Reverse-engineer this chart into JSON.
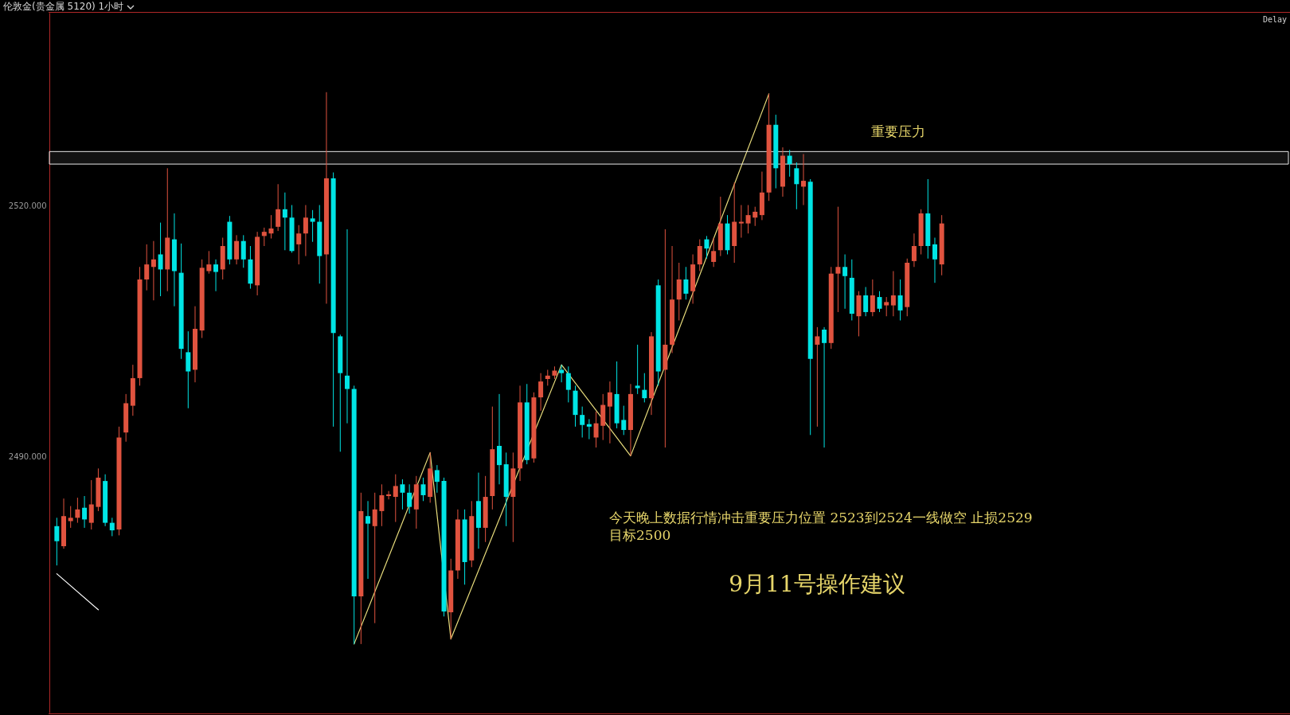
{
  "chart_data": {
    "type": "candlestick",
    "title": "伦敦金(贵金属 5120)  1小时",
    "categories": [
      null,
      null,
      null,
      null,
      null,
      null,
      null,
      null,
      null,
      null,
      null,
      null,
      null,
      null,
      null,
      null,
      null,
      null,
      null,
      null,
      null,
      null,
      null,
      null,
      null,
      null,
      null,
      null,
      null,
      null,
      null,
      null,
      null,
      null,
      null,
      null,
      null,
      null,
      null,
      null,
      null,
      null,
      null,
      null,
      null,
      null,
      null,
      null,
      null,
      null,
      null,
      null,
      null,
      null,
      null,
      null,
      null,
      null,
      null,
      null,
      null,
      null,
      null,
      null,
      null,
      null,
      null,
      null,
      null,
      null,
      null,
      null,
      null,
      null,
      null,
      null,
      null,
      null,
      null,
      null,
      null,
      null,
      null,
      null,
      null,
      null,
      null,
      null,
      null,
      null,
      null,
      null,
      null,
      null,
      null,
      null,
      null,
      null,
      null,
      null,
      null,
      null,
      null,
      null,
      null,
      null,
      null,
      null,
      null,
      null,
      null,
      null,
      null,
      null,
      null,
      null,
      null,
      null,
      null,
      null,
      null,
      null,
      null,
      null,
      null,
      null,
      null,
      null,
      null
    ],
    "ohlc": [
      [
        2481.7,
        2482.7,
        2477.0,
        2479.9
      ],
      [
        2479.3,
        2485.0,
        2479.0,
        2482.9
      ],
      [
        2482.3,
        2484.1,
        2481.5,
        2482.7
      ],
      [
        2482.7,
        2485.1,
        2482.1,
        2483.7
      ],
      [
        2483.9,
        2485.3,
        2481.5,
        2482.5
      ],
      [
        2482.1,
        2487.2,
        2481.3,
        2484.3
      ],
      [
        2484.0,
        2488.6,
        2483.5,
        2487.5
      ],
      [
        2487.1,
        2487.9,
        2481.7,
        2482.1
      ],
      [
        2482.1,
        2482.7,
        2480.5,
        2481.2
      ],
      [
        2481.3,
        2493.6,
        2480.6,
        2492.3
      ],
      [
        2492.9,
        2497.5,
        2491.8,
        2496.4
      ],
      [
        2496.1,
        2501.0,
        2494.9,
        2499.4
      ],
      [
        2499.4,
        2512.7,
        2498.5,
        2511.2
      ],
      [
        2511.2,
        2515.4,
        2509.9,
        2513.0
      ],
      [
        2512.7,
        2515.8,
        2508.7,
        2513.6
      ],
      [
        2514.2,
        2518.0,
        2509.2,
        2512.4
      ],
      [
        2512.4,
        2524.5,
        2509.8,
        2516.2
      ],
      [
        2516.0,
        2519.1,
        2508.0,
        2512.2
      ],
      [
        2512.0,
        2515.5,
        2501.7,
        2502.9
      ],
      [
        2502.5,
        2505.0,
        2495.8,
        2500.2
      ],
      [
        2500.4,
        2508.0,
        2498.9,
        2505.3
      ],
      [
        2505.1,
        2513.6,
        2504.2,
        2512.6
      ],
      [
        2512.2,
        2514.6,
        2511.9,
        2513.0
      ],
      [
        2513.0,
        2513.6,
        2509.8,
        2512.1
      ],
      [
        2512.4,
        2516.2,
        2511.2,
        2515.2
      ],
      [
        2518.1,
        2518.8,
        2513.0,
        2513.6
      ],
      [
        2513.6,
        2516.5,
        2513.0,
        2515.8
      ],
      [
        2515.8,
        2516.5,
        2512.6,
        2513.6
      ],
      [
        2513.6,
        2515.2,
        2510.1,
        2510.7
      ],
      [
        2510.5,
        2516.9,
        2509.3,
        2516.3
      ],
      [
        2516.4,
        2517.4,
        2515.2,
        2516.9
      ],
      [
        2516.7,
        2518.9,
        2516.1,
        2517.3
      ],
      [
        2517.5,
        2522.6,
        2517.0,
        2519.6
      ],
      [
        2519.6,
        2521.6,
        2514.7,
        2518.6
      ],
      [
        2518.6,
        2520.1,
        2514.4,
        2514.6
      ],
      [
        2515.4,
        2517.7,
        2513.0,
        2516.7
      ],
      [
        2516.7,
        2520.1,
        2514.0,
        2518.6
      ],
      [
        2518.5,
        2519.5,
        2515.7,
        2518.1
      ],
      [
        2518.1,
        2520.1,
        2510.7,
        2514.0
      ],
      [
        2514.2,
        2533.6,
        2508.3,
        2523.3
      ],
      [
        2523.3,
        2524.0,
        2493.6,
        2504.8
      ],
      [
        2504.4,
        2504.6,
        2490.6,
        2500.0
      ],
      [
        2499.7,
        2517.2,
        2494.0,
        2498.1
      ],
      [
        2498.1,
        2498.5,
        2467.6,
        2473.3
      ],
      [
        2473.3,
        2485.7,
        2467.6,
        2483.5
      ],
      [
        2482.9,
        2484.7,
        2475.4,
        2482.0
      ],
      [
        2481.7,
        2485.7,
        2470.1,
        2483.7
      ],
      [
        2483.5,
        2486.7,
        2481.7,
        2485.4
      ],
      [
        2485.3,
        2485.9,
        2484.9,
        2485.5
      ],
      [
        2485.2,
        2487.9,
        2482.2,
        2486.5
      ],
      [
        2486.7,
        2487.3,
        2483.7,
        2485.7
      ],
      [
        2485.7,
        2486.7,
        2483.2,
        2484.0
      ],
      [
        2483.7,
        2487.7,
        2481.4,
        2486.7
      ],
      [
        2486.7,
        2487.5,
        2484.7,
        2485.4
      ],
      [
        2485.2,
        2490.5,
        2484.5,
        2488.6
      ],
      [
        2488.4,
        2489.0,
        2485.7,
        2487.0
      ],
      [
        2487.1,
        2487.5,
        2470.9,
        2471.5
      ],
      [
        2471.4,
        2477.8,
        2468.2,
        2476.4
      ],
      [
        2476.4,
        2483.7,
        2475.4,
        2482.5
      ],
      [
        2482.5,
        2483.7,
        2474.7,
        2477.4
      ],
      [
        2477.6,
        2484.7,
        2476.8,
        2482.9
      ],
      [
        2484.7,
        2488.1,
        2479.0,
        2481.5
      ],
      [
        2481.5,
        2487.7,
        2479.8,
        2485.2
      ],
      [
        2485.3,
        2496.0,
        2483.7,
        2490.9
      ],
      [
        2491.3,
        2497.5,
        2486.7,
        2489.0
      ],
      [
        2489.1,
        2490.5,
        2481.7,
        2485.2
      ],
      [
        2485.2,
        2490.5,
        2479.8,
        2488.6
      ],
      [
        2488.6,
        2498.5,
        2487.1,
        2496.5
      ],
      [
        2496.5,
        2498.7,
        2489.1,
        2489.6
      ],
      [
        2489.8,
        2497.7,
        2489.3,
        2497.1
      ],
      [
        2497.1,
        2500.0,
        2495.5,
        2499.0
      ],
      [
        2499.3,
        2500.4,
        2498.5,
        2499.7
      ],
      [
        2499.7,
        2500.8,
        2499.3,
        2500.3
      ],
      [
        2500.4,
        2501.0,
        2498.9,
        2500.0
      ],
      [
        2500.0,
        2500.8,
        2496.5,
        2498.0
      ],
      [
        2497.9,
        2498.5,
        2493.6,
        2495.0
      ],
      [
        2495.0,
        2496.0,
        2492.3,
        2493.8
      ],
      [
        2493.9,
        2494.5,
        2492.1,
        2493.6
      ],
      [
        2492.3,
        2495.4,
        2491.1,
        2494.0
      ],
      [
        2493.7,
        2497.5,
        2492.0,
        2496.2
      ],
      [
        2496.0,
        2499.0,
        2491.6,
        2497.7
      ],
      [
        2497.5,
        2501.4,
        2493.4,
        2494.0
      ],
      [
        2494.4,
        2496.1,
        2492.6,
        2493.2
      ],
      [
        2493.2,
        2498.7,
        2490.1,
        2497.5
      ],
      [
        2498.5,
        2503.4,
        2497.5,
        2498.2
      ],
      [
        2498.0,
        2500.0,
        2496.5,
        2497.0
      ],
      [
        2497.0,
        2504.9,
        2495.0,
        2504.4
      ],
      [
        2510.5,
        2511.2,
        2498.5,
        2500.2
      ],
      [
        2500.4,
        2517.2,
        2491.1,
        2503.4
      ],
      [
        2503.4,
        2515.2,
        2502.4,
        2508.8
      ],
      [
        2508.8,
        2513.2,
        2506.3,
        2511.2
      ],
      [
        2511.2,
        2512.7,
        2508.8,
        2509.5
      ],
      [
        2509.8,
        2514.2,
        2508.3,
        2513.0
      ],
      [
        2513.0,
        2516.0,
        2512.2,
        2515.2
      ],
      [
        2516.0,
        2516.4,
        2513.7,
        2514.9
      ],
      [
        2513.3,
        2516.2,
        2512.7,
        2514.6
      ],
      [
        2514.7,
        2521.1,
        2514.0,
        2517.9
      ],
      [
        2517.9,
        2518.9,
        2514.2,
        2514.7
      ],
      [
        2515.2,
        2522.8,
        2513.2,
        2518.1
      ],
      [
        2517.9,
        2520.1,
        2516.2,
        2518.1
      ],
      [
        2517.9,
        2520.1,
        2516.7,
        2518.9
      ],
      [
        2518.6,
        2519.9,
        2517.6,
        2519.3
      ],
      [
        2518.9,
        2524.1,
        2518.3,
        2521.6
      ],
      [
        2521.6,
        2533.4,
        2520.6,
        2529.7
      ],
      [
        2529.7,
        2530.9,
        2522.1,
        2524.5
      ],
      [
        2522.3,
        2527.0,
        2521.1,
        2526.0
      ],
      [
        2526.0,
        2526.7,
        2523.5,
        2525.0
      ],
      [
        2524.5,
        2525.2,
        2519.6,
        2522.6
      ],
      [
        2522.3,
        2526.2,
        2520.1,
        2523.0
      ],
      [
        2522.9,
        2523.2,
        2492.6,
        2501.7
      ],
      [
        2503.4,
        2505.5,
        2493.6,
        2504.4
      ],
      [
        2505.2,
        2505.5,
        2491.1,
        2503.6
      ],
      [
        2503.6,
        2512.7,
        2502.9,
        2511.9
      ],
      [
        2511.9,
        2519.9,
        2507.3,
        2512.7
      ],
      [
        2512.7,
        2514.2,
        2507.7,
        2511.6
      ],
      [
        2511.4,
        2513.6,
        2506.3,
        2507.1
      ],
      [
        2506.8,
        2509.8,
        2504.4,
        2509.3
      ],
      [
        2509.3,
        2510.3,
        2506.8,
        2507.3
      ],
      [
        2507.3,
        2511.2,
        2506.8,
        2509.3
      ],
      [
        2509.1,
        2509.8,
        2507.3,
        2507.7
      ],
      [
        2508.1,
        2509.1,
        2506.8,
        2508.5
      ],
      [
        2508.1,
        2512.2,
        2506.8,
        2509.3
      ],
      [
        2509.3,
        2511.2,
        2506.3,
        2507.5
      ],
      [
        2507.9,
        2513.7,
        2506.8,
        2513.2
      ],
      [
        2513.4,
        2516.7,
        2512.7,
        2515.2
      ],
      [
        2515.2,
        2519.6,
        2514.2,
        2519.1
      ],
      [
        2519.1,
        2523.2,
        2513.7,
        2515.2
      ],
      [
        2515.4,
        2516.2,
        2510.8,
        2513.6
      ],
      [
        2513.0,
        2518.9,
        2511.7,
        2517.9
      ]
    ],
    "colors": [
      "#00e5e5",
      "#e0533f",
      "#e0533f",
      "#e0533f",
      "#00e5e5",
      "#e0533f",
      "#e0533f",
      "#00e5e5",
      "#00e5e5",
      "#e0533f",
      "#e0533f",
      "#e0533f",
      "#e0533f",
      "#e0533f",
      "#e0533f",
      "#00e5e5",
      "#e0533f",
      "#00e5e5",
      "#00e5e5",
      "#00e5e5",
      "#e0533f",
      "#e0533f",
      "#e0533f",
      "#00e5e5",
      "#e0533f",
      "#00e5e5",
      "#e0533f",
      "#00e5e5",
      "#00e5e5",
      "#e0533f",
      "#e0533f",
      "#e0533f",
      "#e0533f",
      "#00e5e5",
      "#00e5e5",
      "#e0533f",
      "#e0533f",
      "#00e5e5",
      "#00e5e5",
      "#e0533f",
      "#00e5e5",
      "#00e5e5",
      "#00e5e5",
      "#00e5e5",
      "#e0533f",
      "#00e5e5",
      "#e0533f",
      "#e0533f",
      "#e0533f",
      "#e0533f",
      "#00e5e5",
      "#00e5e5",
      "#e0533f",
      "#00e5e5",
      "#e0533f",
      "#00e5e5",
      "#00e5e5",
      "#e0533f",
      "#e0533f",
      "#00e5e5",
      "#e0533f",
      "#00e5e5",
      "#e0533f",
      "#e0533f",
      "#00e5e5",
      "#00e5e5",
      "#e0533f",
      "#e0533f",
      "#00e5e5",
      "#e0533f",
      "#e0533f",
      "#e0533f",
      "#e0533f",
      "#00e5e5",
      "#00e5e5",
      "#00e5e5",
      "#00e5e5",
      "#00e5e5",
      "#e0533f",
      "#e0533f",
      "#e0533f",
      "#00e5e5",
      "#00e5e5",
      "#e0533f",
      "#00e5e5",
      "#00e5e5",
      "#e0533f",
      "#00e5e5",
      "#e0533f",
      "#e0533f",
      "#e0533f",
      "#00e5e5",
      "#e0533f",
      "#e0533f",
      "#00e5e5",
      "#e0533f",
      "#e0533f",
      "#00e5e5",
      "#e0533f",
      "#e0533f",
      "#e0533f",
      "#e0533f",
      "#e0533f",
      "#e0533f",
      "#00e5e5",
      "#e0533f",
      "#00e5e5",
      "#00e5e5",
      "#e0533f",
      "#00e5e5",
      "#e0533f",
      "#00e5e5",
      "#e0533f",
      "#e0533f",
      "#00e5e5",
      "#00e5e5",
      "#e0533f",
      "#00e5e5",
      "#e0533f",
      "#00e5e5",
      "#e0533f",
      "#e0533f",
      "#00e5e5",
      "#e0533f",
      "#e0533f",
      "#e0533f",
      "#00e5e5",
      "#00e5e5",
      "#e0533f"
    ],
    "series": [
      {
        "type": "line",
        "color": "#ffffff",
        "values": [
          2476.0,
          null,
          null,
          null,
          null,
          null,
          2471.7,
          null,
          null,
          null,
          null,
          null,
          null,
          null,
          null,
          null,
          null,
          null,
          null,
          null,
          null,
          null,
          null,
          null,
          null,
          null,
          null,
          null,
          null,
          null,
          null,
          null,
          null,
          null,
          null,
          null,
          null,
          null,
          null,
          null,
          null,
          null,
          null,
          null,
          null,
          null,
          null,
          null,
          null,
          null,
          null,
          null,
          null,
          null,
          null,
          null,
          null,
          null,
          null,
          null,
          null,
          null,
          null,
          null,
          null,
          null,
          null,
          null,
          null,
          null,
          null,
          null,
          null,
          null,
          null,
          null,
          null,
          null,
          null,
          null,
          null,
          null,
          null,
          null,
          null,
          null,
          null,
          null,
          null,
          null,
          null,
          null,
          null,
          null,
          null,
          null,
          null,
          null,
          null,
          null,
          null,
          null,
          null,
          null,
          null,
          null,
          null,
          null,
          null,
          null,
          null,
          null,
          null,
          null,
          null,
          null,
          null,
          null,
          null,
          null,
          null,
          null,
          null,
          null,
          null,
          null,
          null,
          null,
          null
        ]
      },
      {
        "type": "line",
        "color": "#e8dc7c",
        "values": [
          null,
          null,
          null,
          null,
          null,
          null,
          null,
          null,
          null,
          null,
          null,
          null,
          null,
          null,
          null,
          null,
          null,
          null,
          null,
          null,
          null,
          null,
          null,
          null,
          null,
          null,
          null,
          null,
          null,
          null,
          null,
          null,
          null,
          null,
          null,
          null,
          null,
          null,
          null,
          null,
          null,
          null,
          null,
          2467.6,
          null,
          null,
          null,
          null,
          null,
          null,
          null,
          null,
          null,
          null,
          2490.5,
          null,
          null,
          2468.2,
          null,
          null,
          null,
          null,
          null,
          null,
          null,
          null,
          null,
          null,
          null,
          null,
          null,
          null,
          null,
          2501.0,
          null,
          null,
          null,
          null,
          null,
          null,
          null,
          null,
          null,
          2490.1,
          null,
          null,
          null,
          null,
          null,
          null,
          null,
          null,
          null,
          null,
          null,
          null,
          null,
          null,
          null,
          null,
          null,
          null,
          null,
          2533.4,
          null,
          null,
          null,
          null,
          null,
          null,
          null,
          null,
          null,
          null,
          null,
          null,
          null,
          null,
          null,
          null,
          null,
          null,
          null,
          null,
          null,
          null,
          null,
          null,
          null
        ]
      }
    ],
    "bands": [
      {
        "axis": "y",
        "from": 2525.0,
        "to": 2526.5,
        "label": "重要压力",
        "color": "#e8e8e8"
      }
    ],
    "annotations": [
      "Delay",
      "今天晚上数据行情冲击重要压力位置    2523到2524一线做空    止损2529",
      "目标2500",
      "9月11号操作建议"
    ],
    "ylim": [
      2459.4,
      2543.1
    ],
    "yticks": [
      {
        "value": 2520,
        "label": "2520.000"
      },
      {
        "value": 2490,
        "label": "2490.000"
      }
    ],
    "tick_labels": "y"
  }
}
